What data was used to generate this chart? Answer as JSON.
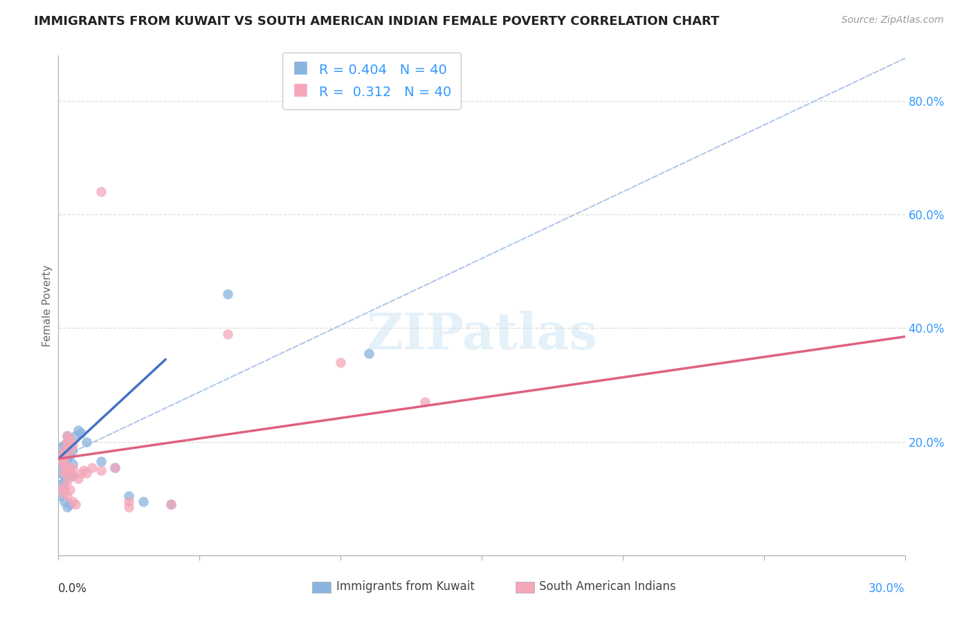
{
  "title": "IMMIGRANTS FROM KUWAIT VS SOUTH AMERICAN INDIAN FEMALE POVERTY CORRELATION CHART",
  "source": "Source: ZipAtlas.com",
  "ylabel": "Female Poverty",
  "xlim": [
    0.0,
    0.3
  ],
  "ylim": [
    0.0,
    0.88
  ],
  "ytick_vals": [
    0.0,
    0.2,
    0.4,
    0.6,
    0.8
  ],
  "ytick_labels": [
    "",
    "20.0%",
    "40.0%",
    "60.0%",
    "80.0%"
  ],
  "r_blue": 0.404,
  "r_pink": 0.312,
  "n_blue": 40,
  "n_pink": 40,
  "watermark_text": "ZIPatlas",
  "legend_blue": "Immigrants from Kuwait",
  "legend_pink": "South American Indians",
  "blue_color": "#8ab4e0",
  "pink_color": "#f4a7b9",
  "blue_line_color": "#4472c4",
  "pink_line_color": "#e06080",
  "dashed_line_color": "#b0c8e8",
  "blue_line_x": [
    0.0,
    0.038
  ],
  "blue_line_y": [
    0.17,
    0.345
  ],
  "dashed_line_x": [
    0.0,
    0.3
  ],
  "dashed_line_y": [
    0.17,
    0.875
  ],
  "pink_line_x": [
    0.0,
    0.3
  ],
  "pink_line_y": [
    0.17,
    0.385
  ],
  "blue_scatter": [
    [
      0.001,
      0.175
    ],
    [
      0.001,
      0.19
    ],
    [
      0.002,
      0.165
    ],
    [
      0.002,
      0.18
    ],
    [
      0.002,
      0.195
    ],
    [
      0.002,
      0.155
    ],
    [
      0.003,
      0.17
    ],
    [
      0.003,
      0.185
    ],
    [
      0.003,
      0.2
    ],
    [
      0.003,
      0.21
    ],
    [
      0.004,
      0.175
    ],
    [
      0.004,
      0.195
    ],
    [
      0.005,
      0.185
    ],
    [
      0.005,
      0.16
    ],
    [
      0.006,
      0.21
    ],
    [
      0.001,
      0.16
    ],
    [
      0.001,
      0.145
    ],
    [
      0.002,
      0.14
    ],
    [
      0.002,
      0.13
    ],
    [
      0.003,
      0.15
    ],
    [
      0.004,
      0.145
    ],
    [
      0.005,
      0.14
    ],
    [
      0.001,
      0.125
    ],
    [
      0.002,
      0.115
    ],
    [
      0.001,
      0.105
    ],
    [
      0.002,
      0.095
    ],
    [
      0.003,
      0.085
    ],
    [
      0.004,
      0.09
    ],
    [
      0.002,
      0.17
    ],
    [
      0.003,
      0.175
    ],
    [
      0.007,
      0.22
    ],
    [
      0.01,
      0.2
    ],
    [
      0.015,
      0.165
    ],
    [
      0.02,
      0.155
    ],
    [
      0.025,
      0.105
    ],
    [
      0.03,
      0.095
    ],
    [
      0.008,
      0.215
    ],
    [
      0.04,
      0.09
    ],
    [
      0.06,
      0.46
    ],
    [
      0.11,
      0.355
    ]
  ],
  "pink_scatter": [
    [
      0.001,
      0.175
    ],
    [
      0.001,
      0.165
    ],
    [
      0.002,
      0.185
    ],
    [
      0.002,
      0.175
    ],
    [
      0.003,
      0.195
    ],
    [
      0.003,
      0.21
    ],
    [
      0.003,
      0.2
    ],
    [
      0.004,
      0.205
    ],
    [
      0.004,
      0.185
    ],
    [
      0.005,
      0.195
    ],
    [
      0.002,
      0.165
    ],
    [
      0.003,
      0.155
    ],
    [
      0.004,
      0.15
    ],
    [
      0.005,
      0.155
    ],
    [
      0.003,
      0.145
    ],
    [
      0.002,
      0.155
    ],
    [
      0.002,
      0.145
    ],
    [
      0.005,
      0.14
    ],
    [
      0.007,
      0.135
    ],
    [
      0.008,
      0.145
    ],
    [
      0.009,
      0.15
    ],
    [
      0.01,
      0.145
    ],
    [
      0.012,
      0.155
    ],
    [
      0.015,
      0.15
    ],
    [
      0.02,
      0.155
    ],
    [
      0.003,
      0.13
    ],
    [
      0.002,
      0.12
    ],
    [
      0.004,
      0.115
    ],
    [
      0.002,
      0.11
    ],
    [
      0.003,
      0.105
    ],
    [
      0.001,
      0.115
    ],
    [
      0.005,
      0.095
    ],
    [
      0.006,
      0.09
    ],
    [
      0.025,
      0.095
    ],
    [
      0.04,
      0.09
    ],
    [
      0.025,
      0.085
    ],
    [
      0.06,
      0.39
    ],
    [
      0.1,
      0.34
    ],
    [
      0.13,
      0.27
    ],
    [
      0.015,
      0.64
    ]
  ]
}
